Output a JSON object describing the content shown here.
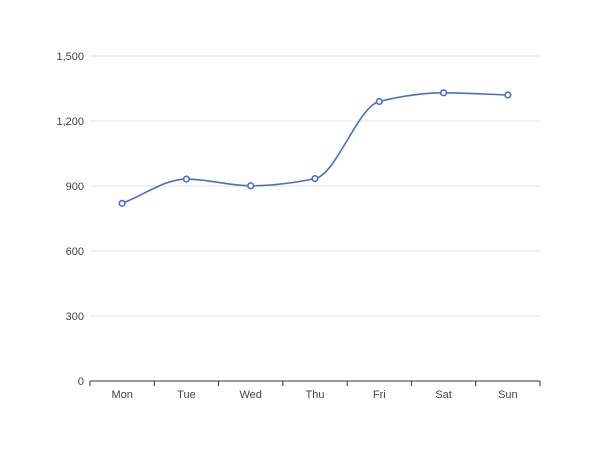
{
  "chart_data": {
    "type": "line",
    "title": "",
    "xlabel": "",
    "ylabel": "",
    "categories": [
      "Mon",
      "Tue",
      "Wed",
      "Thu",
      "Fri",
      "Sat",
      "Sun"
    ],
    "series": [
      {
        "values": [
          820,
          932,
          901,
          934,
          1290,
          1330,
          1320
        ],
        "color": "#4a6cd0",
        "smooth": true
      }
    ],
    "yticks": [
      "0",
      "300",
      "600",
      "900",
      "1,200",
      "1,500"
    ],
    "ytick_values": [
      0,
      300,
      600,
      900,
      1200,
      1500
    ],
    "ylim": [
      0,
      1500
    ],
    "grid": true,
    "legend": "none"
  }
}
